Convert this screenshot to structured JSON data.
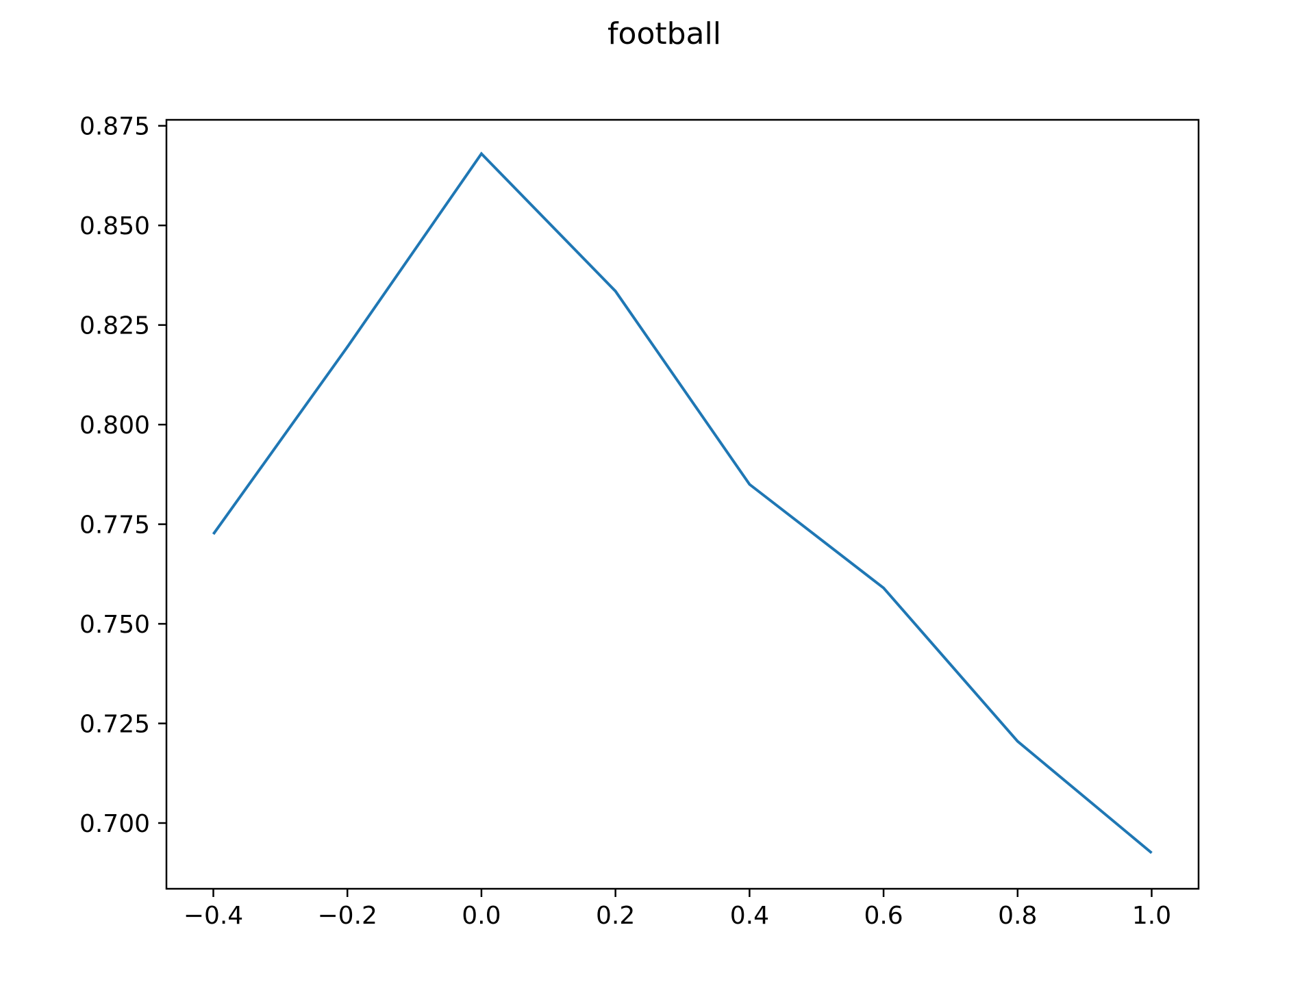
{
  "chart_data": {
    "type": "line",
    "title": "football",
    "xlabel": "",
    "ylabel": "",
    "x": [
      -0.4,
      -0.2,
      0.0,
      0.2,
      0.4,
      0.6,
      0.8,
      1.0
    ],
    "series": [
      {
        "values": [
          0.7725,
          0.8195,
          0.868,
          0.8335,
          0.785,
          0.759,
          0.7205,
          0.6925
        ],
        "color": "#1f77b4"
      }
    ],
    "xlim": [
      -0.47,
      1.07
    ],
    "ylim": [
      0.6835,
      0.8765
    ],
    "x_ticks": [
      -0.4,
      -0.2,
      0.0,
      0.2,
      0.4,
      0.6,
      0.8,
      1.0
    ],
    "x_tick_labels": [
      "−0.4",
      "−0.2",
      "0.0",
      "0.2",
      "0.4",
      "0.6",
      "0.8",
      "1.0"
    ],
    "y_ticks": [
      0.7,
      0.725,
      0.75,
      0.775,
      0.8,
      0.825,
      0.85,
      0.875
    ],
    "y_tick_labels": [
      "0.700",
      "0.725",
      "0.750",
      "0.775",
      "0.800",
      "0.825",
      "0.850",
      "0.875"
    ],
    "grid": false,
    "legend": "none"
  }
}
